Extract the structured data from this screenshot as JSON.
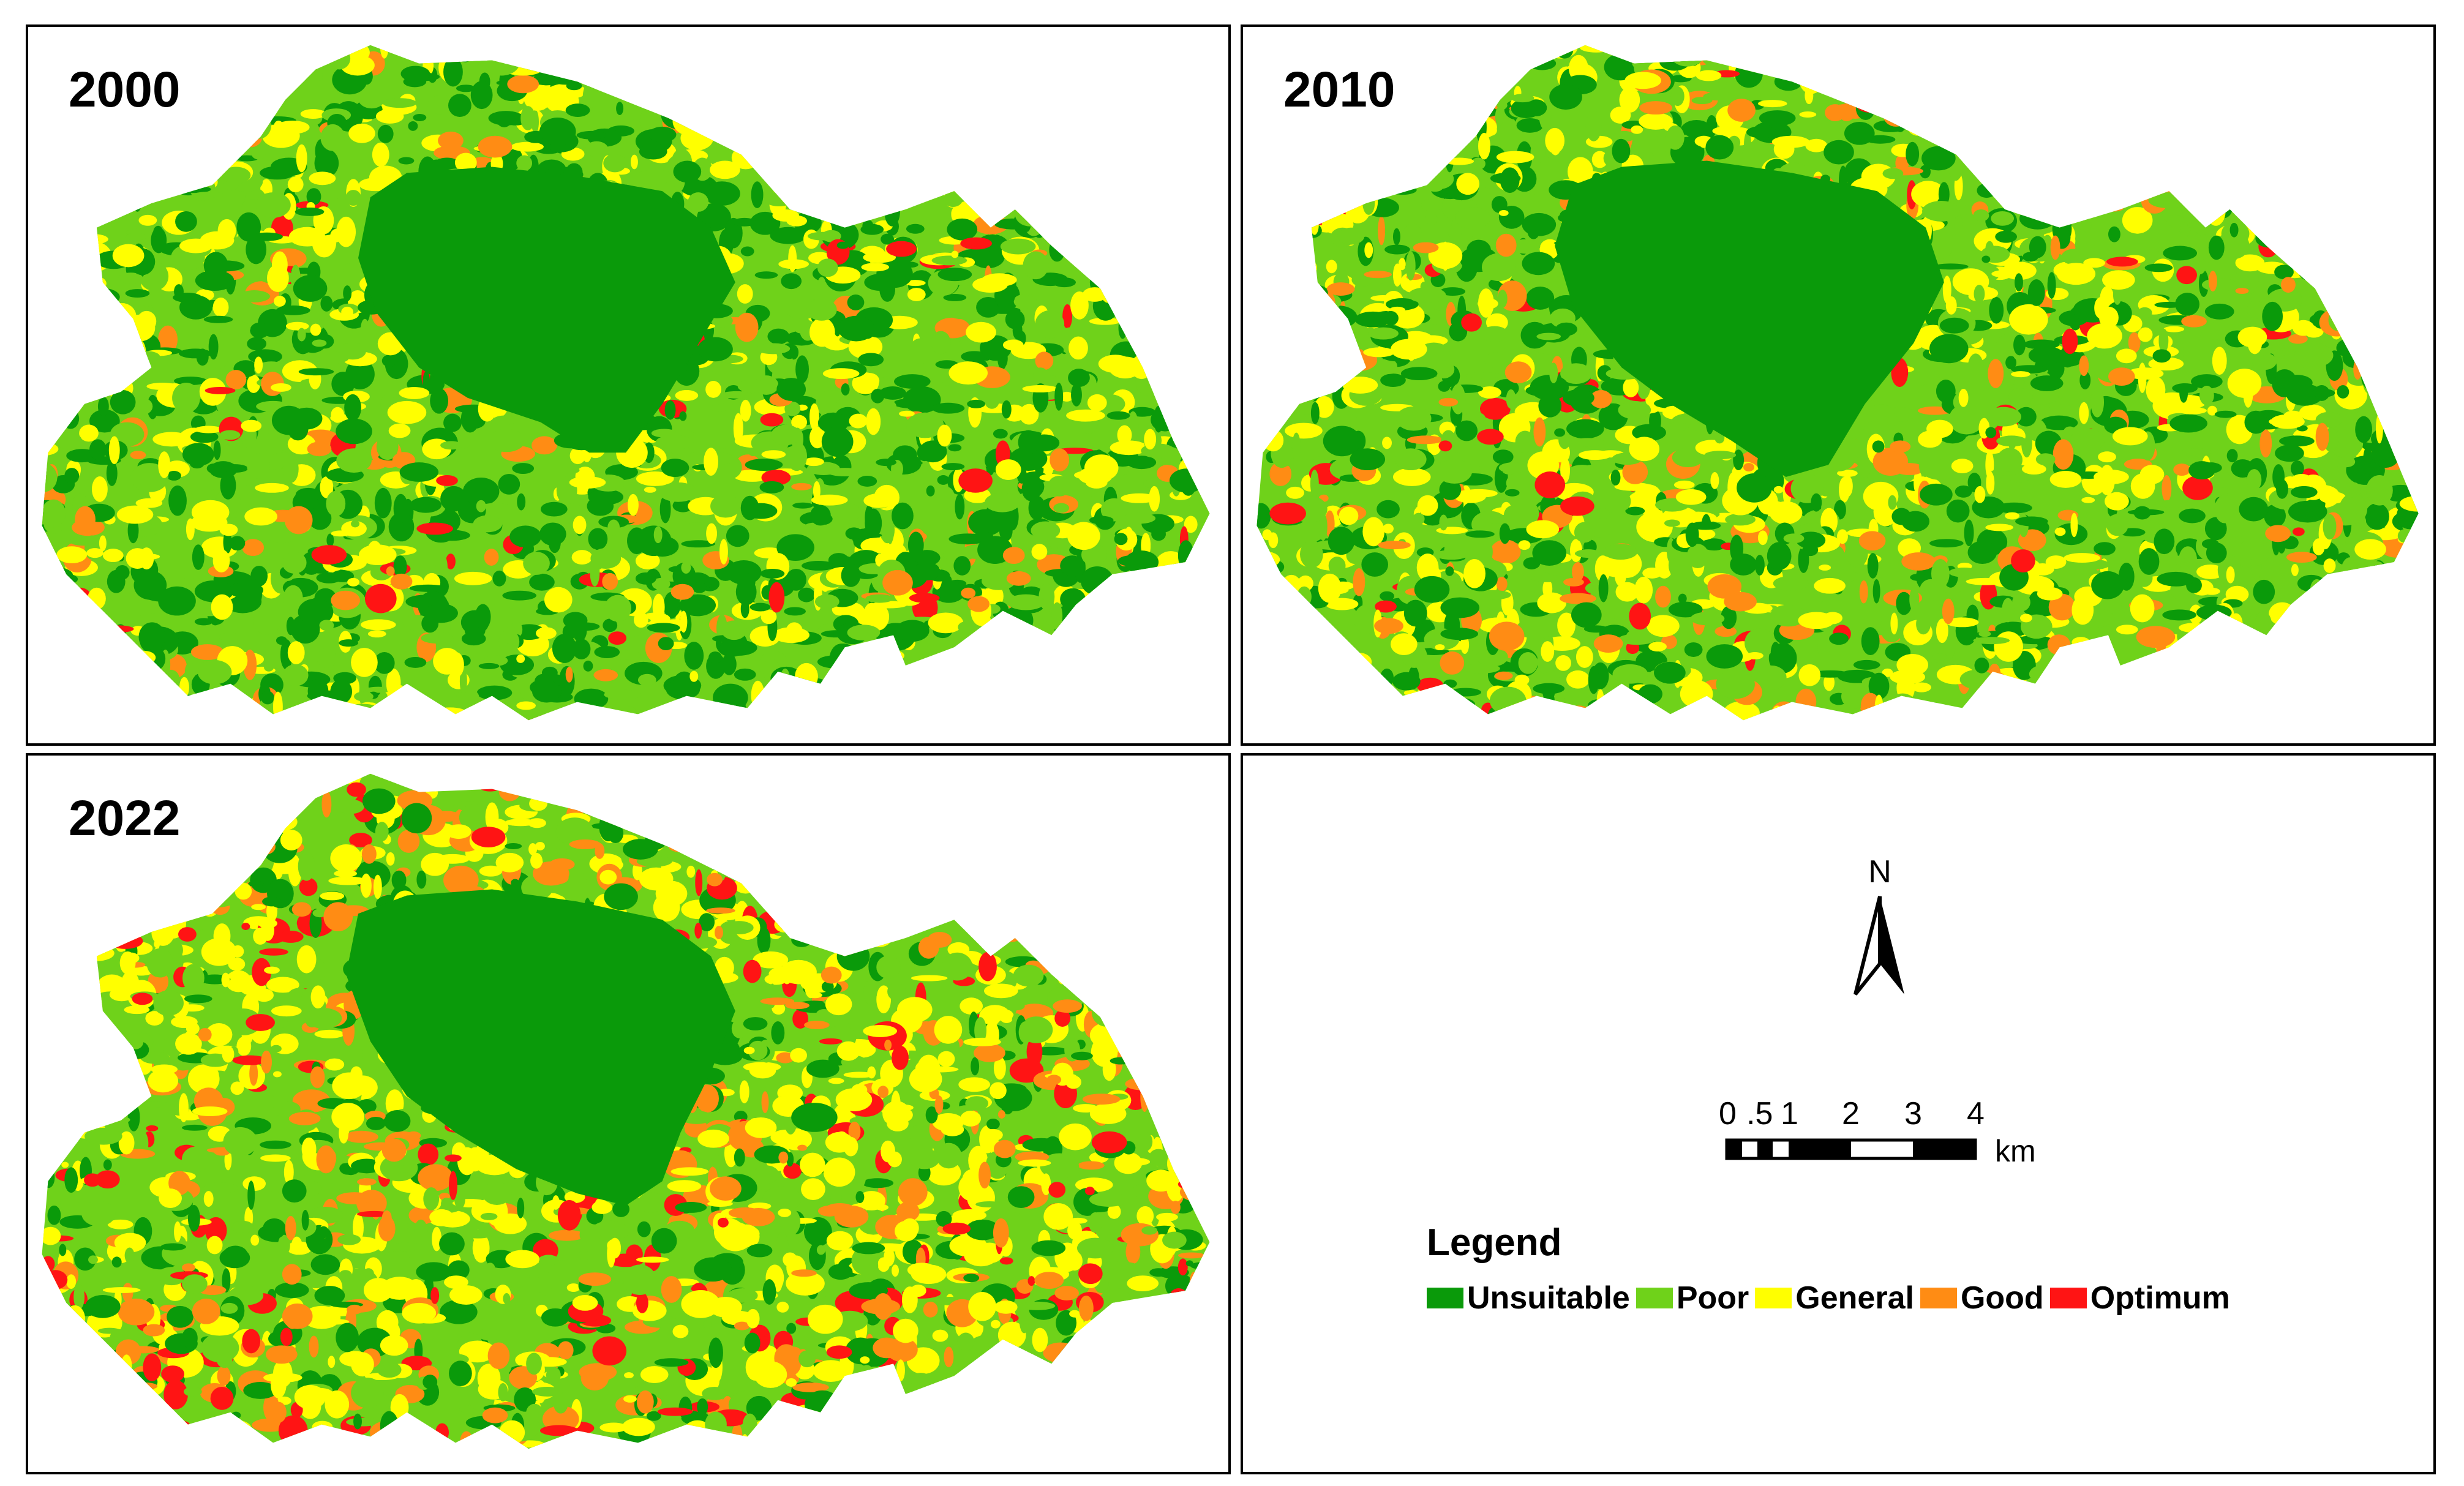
{
  "panels": [
    {
      "year": "2000"
    },
    {
      "year": "2010"
    },
    {
      "year": "2022"
    }
  ],
  "north_arrow": {
    "label": "N"
  },
  "scale_bar": {
    "ticks": [
      "0",
      ".5",
      "1",
      "2",
      "3",
      "4"
    ],
    "unit": "km"
  },
  "legend": {
    "title": "Legend",
    "items": [
      {
        "label": "Unsuitable",
        "color": "#0a9a0a"
      },
      {
        "label": "Poor",
        "color": "#6fd21a"
      },
      {
        "label": "General",
        "color": "#ffff00"
      },
      {
        "label": "Good",
        "color": "#ff8c14"
      },
      {
        "label": "Optimum",
        "color": "#ff1414"
      }
    ]
  },
  "colors": {
    "lake": "#0a9a0a",
    "unsuitable": "#0a9a0a",
    "poor": "#6fd21a",
    "general": "#ffff00",
    "good": "#ff8c14",
    "optimum": "#ff1414"
  }
}
